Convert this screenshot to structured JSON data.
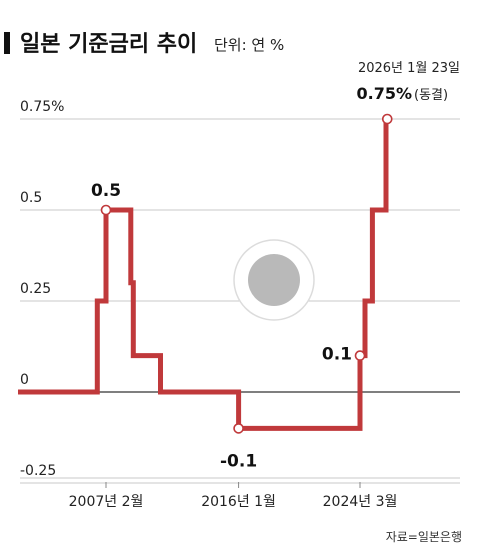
{
  "title": "일본 기준금리 추이",
  "unit": "단위: 연 %",
  "source": "자료=일본은행",
  "chart_data": {
    "type": "line",
    "step": true,
    "ylim": [
      -0.25,
      0.8
    ],
    "yticks": [
      {
        "value": 0.75,
        "label": "0.75%"
      },
      {
        "value": 0.5,
        "label": "0.5"
      },
      {
        "value": 0.25,
        "label": "0.25"
      },
      {
        "value": 0,
        "label": "0"
      },
      {
        "value": -0.25,
        "label": "-0.25"
      }
    ],
    "xticks": [
      {
        "x": "2007-02",
        "label": "2007년 2월"
      },
      {
        "x": "2016-01",
        "label": "2016년 1월"
      },
      {
        "x": "2024-03",
        "label": "2024년 3월"
      }
    ],
    "series": [
      {
        "color": "#c0393b",
        "points": [
          {
            "x": "2001-03",
            "y": 0
          },
          {
            "x": "2006-07",
            "y": 0.25
          },
          {
            "x": "2007-02",
            "y": 0.5
          },
          {
            "x": "2008-10",
            "y": 0.3
          },
          {
            "x": "2008-12",
            "y": 0.1
          },
          {
            "x": "2010-10",
            "y": 0
          },
          {
            "x": "2016-01",
            "y": -0.1
          },
          {
            "x": "2024-03",
            "y": 0.1
          },
          {
            "x": "2024-07",
            "y": 0.25
          },
          {
            "x": "2025-01",
            "y": 0.5
          },
          {
            "x": "2025-12",
            "y": 0.75
          },
          {
            "x": "2026-01",
            "y": 0.75
          }
        ]
      }
    ],
    "labels": [
      {
        "x": "2007-02",
        "y": 0.5,
        "text": "0.5"
      },
      {
        "x": "2016-01",
        "y": -0.1,
        "text": "-0.1"
      },
      {
        "x": "2024-03",
        "y": 0.1,
        "text": "0.1"
      }
    ],
    "annotation": {
      "x": "2026-01",
      "y": 0.75,
      "date_text": "2026년 1월 23일",
      "value_text": "0.75%",
      "note_text": "(동결)"
    }
  }
}
